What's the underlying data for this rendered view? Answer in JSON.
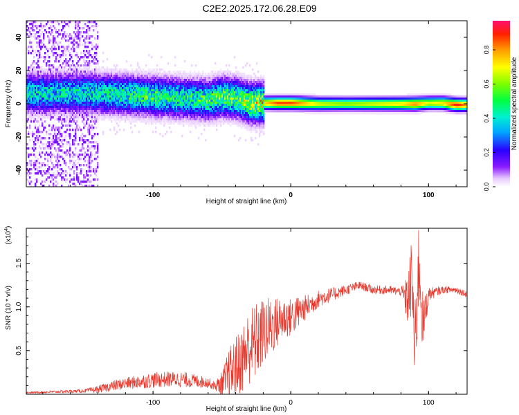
{
  "title": "C2E2.2025.172.06.28.E09",
  "chart_data": [
    {
      "type": "heatmap",
      "xlabel": "Height of straight line (km)",
      "ylabel": "Frequency (Hz)",
      "xlim": [
        -192,
        128
      ],
      "ylim": [
        -50,
        50
      ],
      "xticks": [
        -100,
        0,
        100
      ],
      "yticks": [
        -40,
        -20,
        0,
        20,
        40
      ],
      "colorbar": {
        "label": "Normalized spectral amplitude",
        "range": [
          0,
          0.97
        ],
        "ticks": [
          0.0,
          0.2,
          0.4,
          0.6,
          0.8
        ]
      },
      "ridge": {
        "x": [
          -150,
          -120,
          -100,
          -80,
          -60,
          -50,
          -40,
          -30,
          -20,
          -10,
          0,
          20,
          40,
          60,
          80,
          90,
          100,
          110,
          120,
          128
        ],
        "center_hz": [
          7,
          6,
          5,
          4,
          3,
          5,
          4,
          1,
          1,
          1,
          1,
          0.5,
          0.5,
          0.5,
          0.5,
          0.5,
          1,
          1,
          0,
          0
        ],
        "peak_amplitude": [
          0.45,
          0.5,
          0.55,
          0.5,
          0.55,
          0.6,
          0.6,
          0.7,
          0.75,
          0.9,
          0.9,
          0.7,
          0.65,
          0.7,
          0.75,
          0.85,
          0.7,
          0.75,
          0.95,
          0.8
        ]
      }
    },
    {
      "type": "line",
      "xlabel": "Height of straight line (km)",
      "ylabel": "SNR (10 * v/v)",
      "yscale_label": "(x10",
      "yscale_exp": "4",
      "xlim": [
        -192,
        128
      ],
      "ylim": [
        0,
        1.9
      ],
      "xticks": [
        -100,
        0,
        100
      ],
      "yticks": [
        0.5,
        1.0,
        1.5
      ],
      "ytick_labels": [
        "0.5",
        "1.0",
        "1.5"
      ],
      "color": "#e8372c",
      "x": [
        -190,
        -170,
        -150,
        -140,
        -130,
        -120,
        -110,
        -100,
        -90,
        -80,
        -70,
        -60,
        -55,
        -50,
        -45,
        -40,
        -35,
        -30,
        -25,
        -20,
        -15,
        -10,
        -5,
        0,
        5,
        10,
        20,
        30,
        40,
        50,
        60,
        70,
        80,
        85,
        88,
        90,
        93,
        96,
        100,
        110,
        120,
        128
      ],
      "y": [
        0.02,
        0.03,
        0.04,
        0.06,
        0.1,
        0.13,
        0.15,
        0.17,
        0.18,
        0.18,
        0.16,
        0.14,
        0.1,
        0.13,
        0.25,
        0.35,
        0.45,
        0.6,
        0.65,
        0.75,
        0.8,
        0.85,
        0.9,
        0.9,
        0.95,
        1.0,
        1.1,
        1.15,
        1.2,
        1.25,
        1.2,
        1.2,
        1.18,
        1.1,
        1.4,
        0.5,
        1.6,
        0.8,
        1.15,
        1.2,
        1.2,
        1.15
      ],
      "noise_amp": [
        0.01,
        0.015,
        0.02,
        0.04,
        0.06,
        0.07,
        0.08,
        0.09,
        0.09,
        0.09,
        0.08,
        0.06,
        0.05,
        0.15,
        0.3,
        0.35,
        0.4,
        0.45,
        0.45,
        0.4,
        0.35,
        0.3,
        0.25,
        0.22,
        0.2,
        0.15,
        0.1,
        0.08,
        0.06,
        0.05,
        0.05,
        0.05,
        0.05,
        0.3,
        0.5,
        0.55,
        0.5,
        0.35,
        0.08,
        0.04,
        0.04,
        0.04
      ]
    }
  ]
}
